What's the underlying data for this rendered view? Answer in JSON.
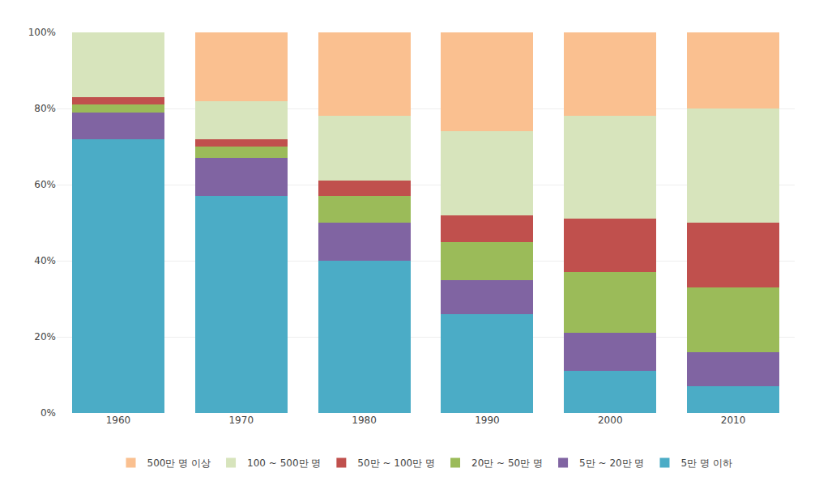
{
  "chart_data": {
    "type": "bar",
    "stacked": true,
    "grid": true,
    "legend": "bottom",
    "categories": [
      "1960",
      "1970",
      "1980",
      "1990",
      "2000",
      "2010"
    ],
    "series": [
      {
        "name": "5만 명 이하",
        "color": "#4BACC6",
        "values": [
          72,
          57,
          40,
          26,
          11,
          7
        ]
      },
      {
        "name": "5만 ~ 20만 명",
        "color": "#8064A2",
        "values": [
          7,
          10,
          10,
          9,
          10,
          9
        ]
      },
      {
        "name": "20만 ~ 50만 명",
        "color": "#9BBB59",
        "values": [
          2,
          3,
          7,
          10,
          16,
          17
        ]
      },
      {
        "name": "50만 ~ 100만 명",
        "color": "#C0504D",
        "values": [
          2,
          2,
          4,
          7,
          14,
          17
        ]
      },
      {
        "name": "100 ~ 500만 명",
        "color": "#D7E4BC",
        "values": [
          17,
          10,
          17,
          22,
          27,
          30
        ]
      },
      {
        "name": "500만 명 이상",
        "color": "#FAC090",
        "values": [
          0,
          18,
          22,
          26,
          22,
          20
        ]
      }
    ],
    "ylim": [
      0,
      100
    ],
    "yticks": [
      {
        "value": 0,
        "label": "0%"
      },
      {
        "value": 20,
        "label": "20%"
      },
      {
        "value": 40,
        "label": "40%"
      },
      {
        "value": 60,
        "label": "60%"
      },
      {
        "value": 80,
        "label": "80%"
      },
      {
        "value": 100,
        "label": "100%"
      }
    ]
  }
}
